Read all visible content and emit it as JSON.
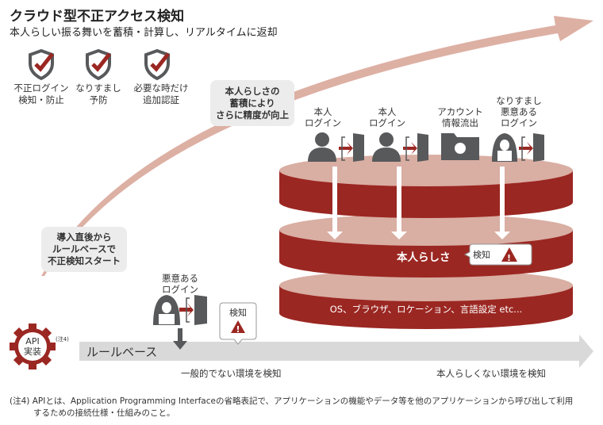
{
  "header": {
    "title": "クラウド型不正アクセス検知",
    "subtitle": "本人らしい振る舞いを蓄積・計算し、リアルタイムに返却"
  },
  "features": [
    {
      "icon": "shield-check-icon",
      "line1": "不正ログイン",
      "line2": "検知・防止"
    },
    {
      "icon": "shield-check-icon",
      "line1": "なりすまし",
      "line2": "予防"
    },
    {
      "icon": "shield-check-icon",
      "line1": "必要な時だけ",
      "line2": "追加認証"
    }
  ],
  "bubbles": {
    "accumulate": [
      "本人らしさの",
      "蓄積により",
      "さらに精度が向上"
    ],
    "start": [
      "導入直後から",
      "ルールベースで",
      "不正検知スタート"
    ]
  },
  "api": {
    "line1": "API",
    "line2": "実装",
    "note": "(注4)"
  },
  "rule_base": {
    "label": "ルールベース",
    "actor": [
      "悪意ある",
      "ログイン"
    ],
    "detect": "検知",
    "caption": "一般的でない環境を検知"
  },
  "actors": [
    {
      "icon": "person-icon",
      "lines": [
        "本人",
        "ログイン"
      ]
    },
    {
      "icon": "person-icon",
      "lines": [
        "本人",
        "ログイン"
      ]
    },
    {
      "icon": "leaked-folder-icon",
      "lines": [
        "アカウント",
        "情報流出"
      ]
    },
    {
      "icon": "hacker-icon",
      "lines": [
        "なりすまし",
        "悪意ある",
        "ログイン"
      ]
    }
  ],
  "layers": {
    "identity": "本人らしさ",
    "detect": "検知",
    "attributes": "OS、ブラウザ、ロケーション、言語設定 etc...",
    "caption": "本人らしくない環境を検知"
  },
  "footnote": [
    "(注4) APIとは、Application Programming Interfaceの省略表記で、アプリケーションの機能やデータ等を他のアプリケーションから呼び出して利用",
    "するための接続仕様・仕組みのこと。"
  ],
  "colors": {
    "dark_red": "#9b2722",
    "light_red": "#d9aea3",
    "gray": "#58595b",
    "bar": "#d9d9d9",
    "curve": "#ddb0a4"
  }
}
